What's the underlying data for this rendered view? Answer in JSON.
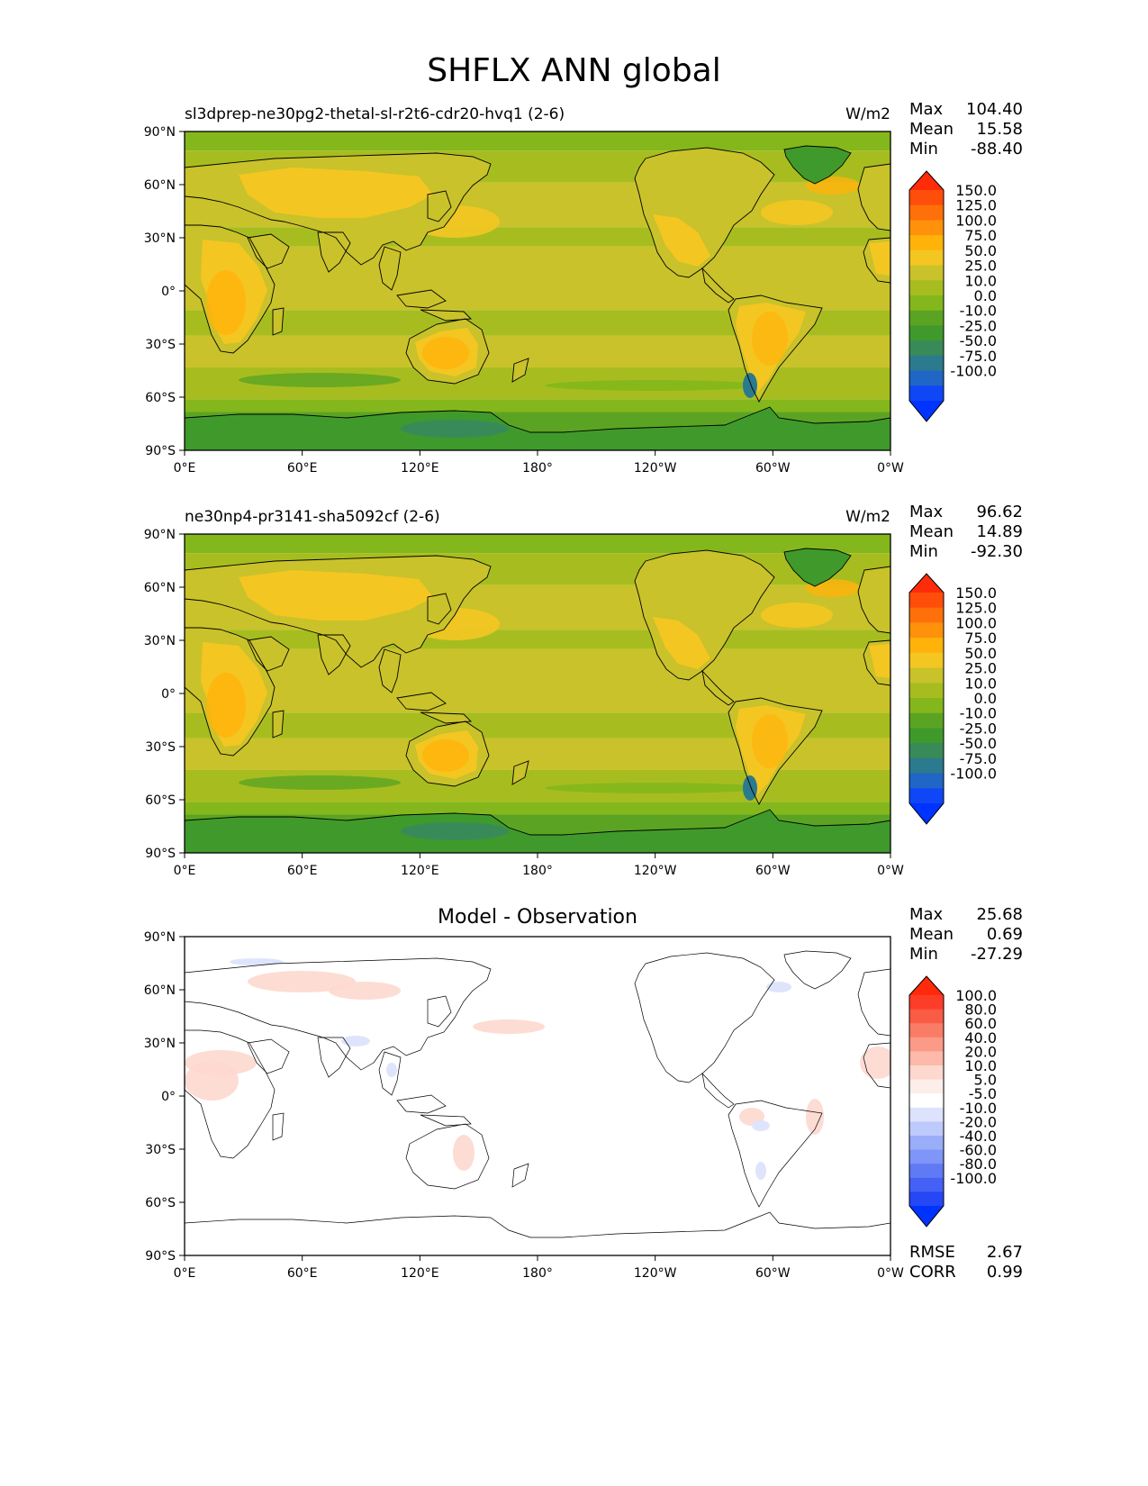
{
  "page": {
    "title": "SHFLX ANN global"
  },
  "panels": [
    {
      "id": "test",
      "title_left": "sl3dprep-ne30pg2-thetal-sl-r2t6-cdr20-hvq1 (2-6)",
      "title_center": "",
      "units": "W/m2",
      "stats": [
        {
          "label": "Max",
          "value": "104.40"
        },
        {
          "label": "Mean",
          "value": "15.58"
        },
        {
          "label": "Min",
          "value": "-88.40"
        }
      ],
      "colorbar": {
        "labels": [
          "150.0",
          "125.0",
          "100.0",
          "75.0",
          "50.0",
          "25.0",
          "10.0",
          "0.0",
          "-10.0",
          "-25.0",
          "-50.0",
          "-75.0",
          "-100.0"
        ],
        "colors": [
          "#ff2c0a",
          "#ff4e0a",
          "#ff700a",
          "#ff920a",
          "#ffb30a",
          "#f4c622",
          "#c9c22a",
          "#a7bd1f",
          "#84b71b",
          "#5ba423",
          "#3f9a2b",
          "#388b59",
          "#2b7a8e",
          "#1f66c6",
          "#0f47f7",
          "#0033ff"
        ]
      },
      "footer_stats": []
    },
    {
      "id": "reference",
      "title_left": "ne30np4-pr3141-sha5092cf (2-6)",
      "title_center": "",
      "units": "W/m2",
      "stats": [
        {
          "label": "Max",
          "value": "96.62"
        },
        {
          "label": "Mean",
          "value": "14.89"
        },
        {
          "label": "Min",
          "value": "-92.30"
        }
      ],
      "colorbar": {
        "labels": [
          "150.0",
          "125.0",
          "100.0",
          "75.0",
          "50.0",
          "25.0",
          "10.0",
          "0.0",
          "-10.0",
          "-25.0",
          "-50.0",
          "-75.0",
          "-100.0"
        ],
        "colors": [
          "#ff2c0a",
          "#ff4e0a",
          "#ff700a",
          "#ff920a",
          "#ffb30a",
          "#f4c622",
          "#c9c22a",
          "#a7bd1f",
          "#84b71b",
          "#5ba423",
          "#3f9a2b",
          "#388b59",
          "#2b7a8e",
          "#1f66c6",
          "#0f47f7",
          "#0033ff"
        ]
      },
      "footer_stats": []
    },
    {
      "id": "diff",
      "title_left": "",
      "title_center": "Model - Observation",
      "units": "",
      "stats": [
        {
          "label": "Max",
          "value": "25.68"
        },
        {
          "label": "Mean",
          "value": "0.69"
        },
        {
          "label": "Min",
          "value": "-27.29"
        }
      ],
      "colorbar": {
        "labels": [
          "100.0",
          "80.0",
          "60.0",
          "40.0",
          "20.0",
          "10.0",
          "5.0",
          "-5.0",
          "-10.0",
          "-20.0",
          "-40.0",
          "-60.0",
          "-80.0",
          "-100.0"
        ],
        "colors": [
          "#ff2a0c",
          "#fe3d28",
          "#f95b45",
          "#f97c66",
          "#fb9a86",
          "#fdb9a9",
          "#fdd8cf",
          "#fdeeea",
          "#ffffff",
          "#dde3fd",
          "#bfcafc",
          "#9aadf9",
          "#7f95f7",
          "#6079f5",
          "#4460f5",
          "#2547f6",
          "#0033ff"
        ]
      },
      "footer_stats": [
        {
          "label": "RMSE",
          "value": "2.67"
        },
        {
          "label": "CORR",
          "value": "0.99"
        }
      ]
    }
  ],
  "map_axes": {
    "lat_ticks": [
      "90°N",
      "60°N",
      "30°N",
      "0°",
      "30°S",
      "60°S",
      "90°S"
    ],
    "lon_ticks": [
      "0°E",
      "60°E",
      "120°E",
      "180°",
      "120°W",
      "60°W",
      "0°W"
    ]
  },
  "chart_data": [
    {
      "type": "heatmap",
      "projection": "PlateCarree, central longitude 180",
      "title": "sl3dprep-ne30pg2-thetal-sl-r2t6-cdr20-hvq1 (2-6)",
      "units": "W/m2",
      "xlim": [
        0,
        360
      ],
      "ylim": [
        -90,
        90
      ],
      "x_ticks": [
        "0°E",
        "60°E",
        "120°E",
        "180°",
        "120°W",
        "60°W",
        "0°W"
      ],
      "y_ticks": [
        "90°N",
        "60°N",
        "30°N",
        "0°",
        "30°S",
        "60°S",
        "90°S"
      ],
      "contour_levels": [
        -100,
        -75,
        -50,
        -25,
        -10,
        0,
        10,
        25,
        50,
        75,
        100,
        125,
        150
      ],
      "stats": {
        "max": 104.4,
        "mean": 15.58,
        "min": -88.4
      }
    },
    {
      "type": "heatmap",
      "projection": "PlateCarree, central longitude 180",
      "title": "ne30np4-pr3141-sha5092cf (2-6)",
      "units": "W/m2",
      "xlim": [
        0,
        360
      ],
      "ylim": [
        -90,
        90
      ],
      "x_ticks": [
        "0°E",
        "60°E",
        "120°E",
        "180°",
        "120°W",
        "60°W",
        "0°W"
      ],
      "y_ticks": [
        "90°N",
        "60°N",
        "30°N",
        "0°",
        "30°S",
        "60°S",
        "90°S"
      ],
      "contour_levels": [
        -100,
        -75,
        -50,
        -25,
        -10,
        0,
        10,
        25,
        50,
        75,
        100,
        125,
        150
      ],
      "stats": {
        "max": 96.62,
        "mean": 14.89,
        "min": -92.3
      }
    },
    {
      "type": "heatmap",
      "projection": "PlateCarree, central longitude 180",
      "title": "Model - Observation",
      "xlim": [
        0,
        360
      ],
      "ylim": [
        -90,
        90
      ],
      "x_ticks": [
        "0°E",
        "60°E",
        "120°E",
        "180°",
        "120°W",
        "60°W",
        "0°W"
      ],
      "y_ticks": [
        "90°N",
        "60°N",
        "30°N",
        "0°",
        "30°S",
        "60°S",
        "90°S"
      ],
      "contour_levels": [
        -100,
        -80,
        -60,
        -40,
        -20,
        -10,
        -5,
        5,
        10,
        20,
        40,
        60,
        80,
        100
      ],
      "stats": {
        "max": 25.68,
        "mean": 0.69,
        "min": -27.29,
        "rmse": 2.67,
        "corr": 0.99
      }
    }
  ]
}
